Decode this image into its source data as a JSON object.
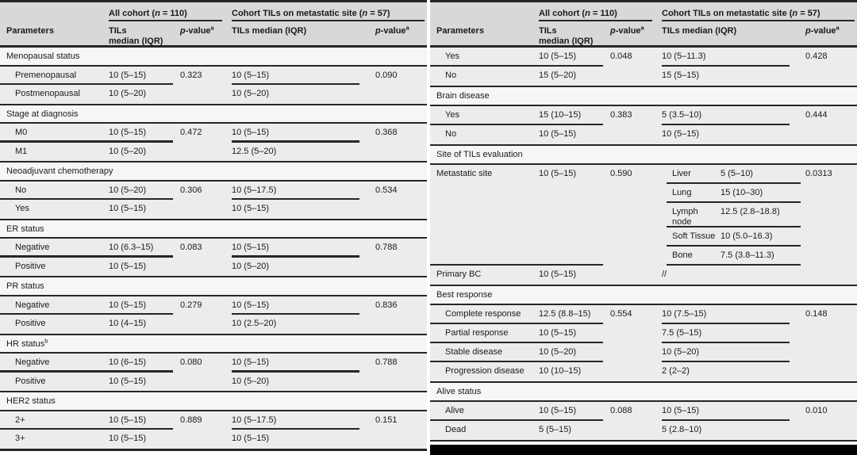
{
  "colors": {
    "header_bg": "#d8d8d8",
    "data_row_bg": "#ececec",
    "section_row_bg": "#f6f6f6",
    "rule": "#262626",
    "text": "#1a1a1a",
    "footer_bar": "#000000"
  },
  "header": {
    "parameters": "Parameters",
    "group1_pre": "All cohort (",
    "group1_n": "n",
    "group1_post": " = 110)",
    "group2_pre": "Cohort TILs on metastatic site (",
    "group2_n": "n",
    "group2_post": " = 57)",
    "tils_line1": "TILs",
    "tils_line2": "median (IQR)",
    "tils_full": "TILs median (IQR)",
    "p_italic": "p",
    "p_rest": "-value",
    "p_sup": "a"
  },
  "panels": [
    {
      "sections": [
        {
          "label": "Menopausal status",
          "rows": [
            {
              "param": "Premenopausal",
              "tils1": "10 (5–15)",
              "p1": "0.323",
              "tils2": "10 (5–15)",
              "p2": "0.090"
            },
            {
              "param": "Postmenopausal",
              "tils1": "10 (5–20)",
              "tils2": "10 (5–20)"
            }
          ]
        },
        {
          "label": "Stage at diagnosis",
          "rows": [
            {
              "param": "M0",
              "tils1": "10 (5–15)",
              "p1": "0.472",
              "tils2": "10 (5–15)",
              "p2": "0.368"
            },
            {
              "param": "M1",
              "tils1": "10 (5–20)",
              "tils2": "12.5 (5–20)"
            }
          ]
        },
        {
          "label": "Neoadjuvant chemotherapy",
          "rows": [
            {
              "param": "No",
              "tils1": "10 (5–20)",
              "p1": "0.306",
              "tils2": "10 (5–17.5)",
              "p2": "0.534"
            },
            {
              "param": "Yes",
              "tils1": "10 (5–15)",
              "tils2": "10 (5–15)"
            }
          ]
        },
        {
          "label": "ER status",
          "rows": [
            {
              "param": "Negative",
              "tils1": "10 (6.3–15)",
              "p1": "0.083",
              "tils2": "10 (5–15)",
              "p2": "0.788"
            },
            {
              "param": "Positive",
              "tils1": "10 (5–15)",
              "tils2": "10 (5–20)"
            }
          ]
        },
        {
          "label": "PR status",
          "rows": [
            {
              "param": "Negative",
              "tils1": "10 (5–15)",
              "p1": "0.279",
              "tils2": "10 (5–15)",
              "p2": "0.836"
            },
            {
              "param": "Positive",
              "tils1": "10 (4–15)",
              "tils2": "10 (2.5–20)"
            }
          ]
        },
        {
          "label": "HR status",
          "sup": "b",
          "rows": [
            {
              "param": "Negative",
              "tils1": "10 (6–15)",
              "p1": "0.080",
              "tils2": "10 (5–15)",
              "p2": "0.788"
            },
            {
              "param": "Positive",
              "tils1": "10 (5–15)",
              "tils2": "10 (5–20)"
            }
          ]
        },
        {
          "label": "HER2 status",
          "rows": [
            {
              "param": "2+",
              "tils1": "10 (5–15)",
              "p1": "0.889",
              "tils2": "10 (5–17.5)",
              "p2": "0.151"
            },
            {
              "param": "3+",
              "tils1": "10 (5–15)",
              "tils2": "10 (5–15)"
            }
          ]
        }
      ]
    },
    {
      "sections": [
        {
          "label": null,
          "rows": [
            {
              "param": "Yes",
              "tils1": "10 (5–15)",
              "p1": "0.048",
              "tils2": "10 (5–11.3)",
              "p2": "0.428"
            },
            {
              "param": "No",
              "tils1": "15 (5–20)",
              "tils2": "15 (5–15)"
            }
          ]
        },
        {
          "label": "Brain disease",
          "rows": [
            {
              "param": "Yes",
              "tils1": "15 (10–15)",
              "p1": "0.383",
              "tils2": "5 (3.5–10)",
              "p2": "0.444"
            },
            {
              "param": "No",
              "tils1": "10 (5–15)",
              "tils2": "10 (5–15)"
            }
          ]
        },
        {
          "label": "Site of TILs evaluation",
          "rows": [
            {
              "param": "Metastatic site",
              "indent": false,
              "tils1": "10 (5–15)",
              "p1": "0.590",
              "p2": "0.0313",
              "sites": [
                {
                  "site": "Liver",
                  "value": "5 (5–10)"
                },
                {
                  "site": "Lung",
                  "value": "15 (10–30)"
                },
                {
                  "site": "Lymph node",
                  "value": "12.5 (2.8–18.8)"
                },
                {
                  "site": "Soft Tissue",
                  "value": "10 (5.0–16.3)"
                },
                {
                  "site": "Bone",
                  "value": "7.5 (3.8–11.3)"
                }
              ]
            },
            {
              "param": "Primary BC",
              "indent": false,
              "tils1": "10 (5–15)",
              "tils2": "//"
            }
          ]
        },
        {
          "label": "Best response",
          "rows": [
            {
              "param": "Complete response",
              "tils1": "12.5 (8.8–15)",
              "p1": "0.554",
              "tils2": "10 (7.5–15)",
              "p2": "0.148"
            },
            {
              "param": "Partial response",
              "tils1": "10 (5–15)",
              "tils2": "7.5 (5–15)"
            },
            {
              "param": "Stable disease",
              "tils1": "10 (5–20)",
              "tils2": "10 (5–20)"
            },
            {
              "param": "Progression disease",
              "tils1": "10 (10–15)",
              "tils2": "2 (2–2)"
            }
          ]
        },
        {
          "label": "Alive status",
          "rows": [
            {
              "param": "Alive",
              "tils1": "10 (5–15)",
              "p1": "0.088",
              "tils2": "10 (5–15)",
              "p2": "0.010"
            },
            {
              "param": "Dead",
              "tils1": "5 (5–15)",
              "tils2": "5 (2.8–10)"
            }
          ]
        }
      ]
    }
  ]
}
